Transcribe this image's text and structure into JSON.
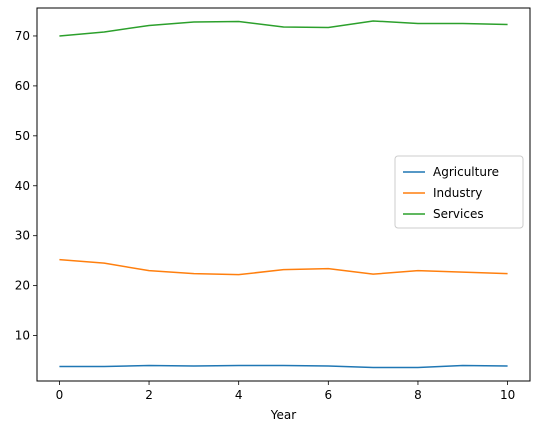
{
  "chart_data": {
    "type": "line",
    "xlabel": "Year",
    "ylabel": "",
    "title": "",
    "xlim": [
      -0.5,
      10.5
    ],
    "ylim": [
      0.9,
      75.6
    ],
    "xticks": [
      0,
      2,
      4,
      6,
      8,
      10
    ],
    "yticks": [
      10,
      20,
      30,
      40,
      50,
      60,
      70
    ],
    "grid": false,
    "legend_position": "center-right",
    "x": [
      0,
      1,
      2,
      3,
      4,
      5,
      6,
      7,
      8,
      9,
      10
    ],
    "series": [
      {
        "name": "Agriculture",
        "color": "#1f77b4",
        "values": [
          3.8,
          3.8,
          4.0,
          3.9,
          4.0,
          4.0,
          3.9,
          3.6,
          3.6,
          4.0,
          3.9
        ]
      },
      {
        "name": "Industry",
        "color": "#ff7f0e",
        "values": [
          25.2,
          24.5,
          23.0,
          22.4,
          22.2,
          23.2,
          23.4,
          22.3,
          23.0,
          22.7,
          22.4
        ]
      },
      {
        "name": "Services",
        "color": "#2ca02c",
        "values": [
          70.0,
          70.8,
          72.1,
          72.8,
          72.9,
          71.8,
          71.7,
          73.0,
          72.5,
          72.5,
          72.3
        ]
      }
    ]
  }
}
